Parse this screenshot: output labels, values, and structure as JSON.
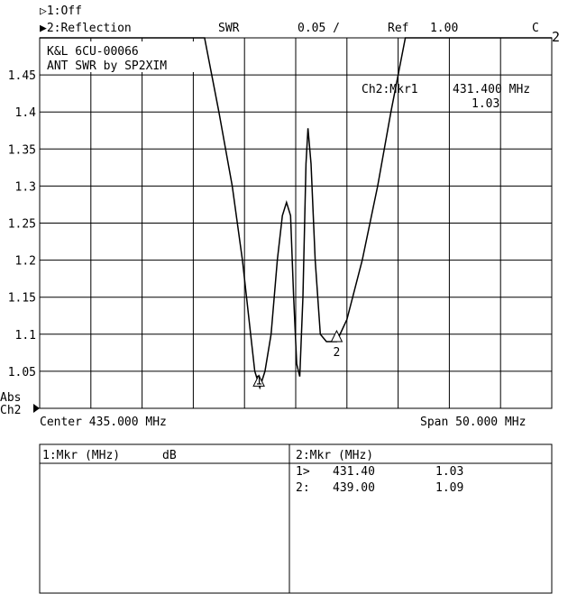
{
  "header": {
    "ch1_status": "▷1:Off",
    "ch2_status": "▶2:Reflection",
    "format": "SWR",
    "scale": "0.05 /",
    "ref": "Ref   1.00",
    "cal": "C",
    "channel_badge": "2"
  },
  "annotation": {
    "line1": "K&L 6CU-00066",
    "line2": "ANT SWR by SP2XIM"
  },
  "marker_readout": {
    "label": "Ch2:Mkr1",
    "freq": "431.400 MHz",
    "value": "1.03"
  },
  "ref_label": {
    "line1": "Abs",
    "line2": "Ch2"
  },
  "footer": {
    "center": "Center 435.000 MHz",
    "span": "Span 50.000 MHz"
  },
  "tables": {
    "left": {
      "header": "1:Mkr (MHz)      dB"
    },
    "right": {
      "header": "2:Mkr (MHz)",
      "rows": [
        {
          "id": "1>",
          "freq": "431.40",
          "value": "1.03"
        },
        {
          "id": "2:",
          "freq": "439.00",
          "value": "1.09"
        }
      ]
    }
  },
  "chart_data": {
    "type": "line",
    "xlim": [
      410,
      460
    ],
    "ylim": [
      1.0,
      1.5
    ],
    "grid": true,
    "x_divisions": 10,
    "yticks": [
      1.05,
      1.1,
      1.15,
      1.2,
      1.25,
      1.3,
      1.35,
      1.4,
      1.45
    ],
    "ytick_labels": [
      "1.05",
      "1.1",
      "1.15",
      "1.2",
      "1.25",
      "1.3",
      "1.35",
      "1.4",
      "1.45"
    ],
    "series": [
      {
        "points": [
          [
            410,
            1.5
          ],
          [
            426.1,
            1.5
          ],
          [
            427.5,
            1.4
          ],
          [
            428.8,
            1.3
          ],
          [
            429.8,
            1.2
          ],
          [
            430.6,
            1.1
          ],
          [
            431.0,
            1.05
          ],
          [
            431.5,
            1.028
          ],
          [
            432.0,
            1.05
          ],
          [
            432.6,
            1.1
          ],
          [
            433.2,
            1.2
          ],
          [
            433.7,
            1.26
          ],
          [
            434.1,
            1.278
          ],
          [
            434.5,
            1.26
          ],
          [
            434.8,
            1.15
          ],
          [
            435.1,
            1.06
          ],
          [
            435.4,
            1.043
          ],
          [
            435.7,
            1.15
          ],
          [
            436.0,
            1.33
          ],
          [
            436.2,
            1.378
          ],
          [
            436.5,
            1.33
          ],
          [
            436.9,
            1.2
          ],
          [
            437.4,
            1.1
          ],
          [
            438.0,
            1.09
          ],
          [
            439.0,
            1.09
          ],
          [
            440.0,
            1.12
          ],
          [
            441.5,
            1.2
          ],
          [
            443.0,
            1.3
          ],
          [
            444.3,
            1.4
          ],
          [
            445.7,
            1.5
          ],
          [
            460,
            1.5
          ]
        ]
      }
    ],
    "markers": [
      {
        "label": "1",
        "x": 431.4,
        "y": 1.03
      },
      {
        "label": "2",
        "x": 439.0,
        "y": 1.09
      }
    ]
  }
}
